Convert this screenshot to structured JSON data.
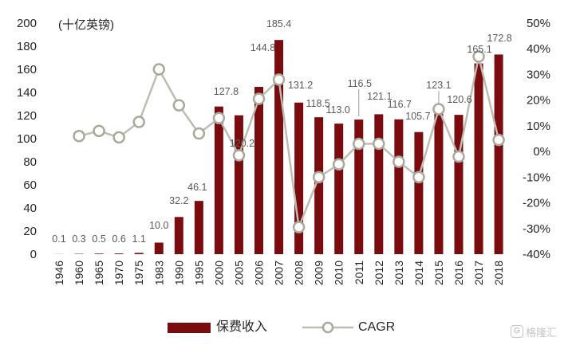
{
  "chart_data": {
    "type": "bar",
    "unit_label": "(十亿英镑)",
    "categories": [
      "1946",
      "1960",
      "1965",
      "1970",
      "1975",
      "1983",
      "1990",
      "1995",
      "2000",
      "2005",
      "2006",
      "2007",
      "2008",
      "2009",
      "2010",
      "2011",
      "2012",
      "2013",
      "2014",
      "2015",
      "2016",
      "2017",
      "2018"
    ],
    "series": [
      {
        "name": "保费收入",
        "type": "bar",
        "axis": "left",
        "color": "#7a0c0f",
        "values": [
          0.1,
          0.3,
          0.5,
          0.6,
          1.1,
          10.0,
          32.2,
          46.1,
          127.8,
          120.2,
          144.8,
          185.4,
          131.2,
          118.5,
          113.0,
          116.5,
          121.1,
          116.7,
          105.7,
          123.1,
          120.6,
          165.1,
          172.8
        ]
      },
      {
        "name": "CAGR",
        "type": "line",
        "axis": "right",
        "color": "#bdbdb1",
        "marker": "hollow-circle",
        "values": [
          null,
          6,
          8,
          5.5,
          11.5,
          32,
          18,
          7,
          13,
          -1.5,
          20.5,
          28,
          -29.5,
          -10,
          -5,
          3,
          3,
          -4,
          -10,
          16.5,
          -2,
          37,
          4.5
        ]
      }
    ],
    "left_axis": {
      "ylim": [
        0,
        200
      ],
      "tick_labels": [
        "200",
        "180",
        "160",
        "140",
        "120",
        "100",
        "80",
        "60",
        "40",
        "20",
        "0"
      ]
    },
    "right_axis": {
      "ylim": [
        -40,
        50
      ],
      "unit": "%",
      "tick_labels": [
        "50%",
        "40%",
        "30%",
        "20%",
        "10%",
        "0%",
        "-10%",
        "-20%",
        "-30%",
        "-40%"
      ]
    },
    "x_axis": {
      "tick_rotation": "vertical"
    },
    "grid": false,
    "legend": {
      "placement": "bottom"
    }
  },
  "watermark": {
    "icon": "g-logo-icon",
    "text": "格隆汇"
  }
}
